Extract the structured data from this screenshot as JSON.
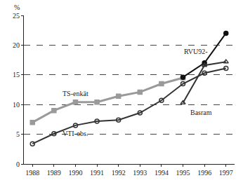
{
  "chart_data": {
    "type": "line",
    "ylabel": "%",
    "x": [
      1988,
      1989,
      1990,
      1991,
      1992,
      1993,
      1994,
      1995,
      1996,
      1997
    ],
    "xlim": [
      1987.6,
      1997.4
    ],
    "xticks": [
      1988,
      1989,
      1990,
      1991,
      1992,
      1993,
      1994,
      1995,
      1996,
      1997
    ],
    "ylim": [
      0,
      25
    ],
    "yticks": [
      0,
      5,
      10,
      15,
      20,
      25
    ],
    "grid": true,
    "series": [
      {
        "name": "TS-enkät",
        "color": "#9a9a9a",
        "marker": "square",
        "values": [
          7,
          9,
          10.4,
          10.4,
          11.4,
          12.1,
          13.5,
          14.5,
          null,
          null
        ]
      },
      {
        "name": "VTI-obs.",
        "color": "#333333",
        "marker": "circle-open",
        "values": [
          3.4,
          5.1,
          6.5,
          7.2,
          7.4,
          8.6,
          10.7,
          13.5,
          15.3,
          16.1
        ]
      },
      {
        "name": "RVU92-",
        "color": "#111111",
        "marker": "circle",
        "values": [
          null,
          null,
          null,
          null,
          null,
          null,
          null,
          14.6,
          17,
          22
        ]
      },
      {
        "name": "Basram",
        "color": "#333333",
        "marker": "triangle-up-open",
        "values": [
          null,
          null,
          null,
          null,
          null,
          null,
          null,
          10.3,
          16.6,
          17.2
        ]
      }
    ]
  }
}
